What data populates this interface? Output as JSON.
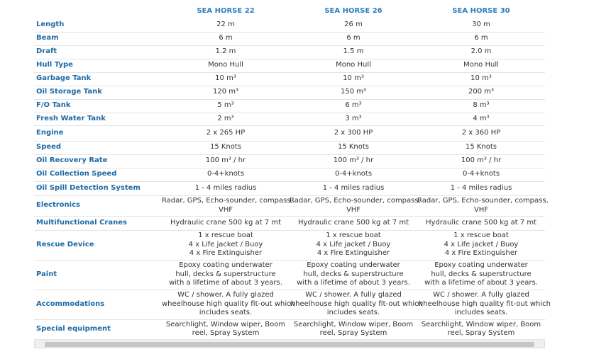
{
  "header": {
    "columns": [
      "SEA HORSE 22",
      "SEA HORSE 26",
      "SEA HORSE 30"
    ]
  },
  "table": {
    "rows": [
      {
        "label": "Length",
        "cells": [
          "22 m",
          "26 m",
          "30 m"
        ]
      },
      {
        "label": "Beam",
        "cells": [
          "6 m",
          "6 m",
          "6 m"
        ]
      },
      {
        "label": "Draft",
        "cells": [
          "1.2 m",
          "1.5 m",
          "2.0 m"
        ]
      },
      {
        "label": "Hull Type",
        "cells": [
          "Mono Hull",
          "Mono Hull",
          "Mono Hull"
        ]
      },
      {
        "label": "Garbage Tank",
        "cells": [
          "10 m³",
          "10 m³",
          "10 m³"
        ]
      },
      {
        "label": "Oil Storage Tank",
        "cells": [
          "120 m³",
          "150 m³",
          "200 m³"
        ]
      },
      {
        "label": "F/O Tank",
        "cells": [
          "5 m³",
          "6 m³",
          "8 m³"
        ]
      },
      {
        "label": "Fresh Water Tank",
        "cells": [
          "2 m³",
          "3 m³",
          "4 m³"
        ]
      },
      {
        "label": "Engine",
        "cells": [
          "2 x 265 HP",
          "2 x 300 HP",
          "2 x 360 HP"
        ]
      },
      {
        "label": "Speed",
        "cells": [
          "15 Knots",
          "15 Knots",
          "15 Knots"
        ]
      },
      {
        "label": "Oil Recovery Rate",
        "cells": [
          "100 m³ / hr",
          "100 m³ / hr",
          "100 m³ / hr"
        ]
      },
      {
        "label": "Oil Collection Speed",
        "cells": [
          "0-4+knots",
          "0-4+knots",
          "0-4+knots"
        ]
      },
      {
        "label": "Oil Spill Detection System",
        "cells": [
          "1 - 4 miles radius",
          "1 - 4 miles radius",
          "1 - 4 miles radius"
        ]
      },
      {
        "label": "Electronics",
        "cells": [
          [
            "Radar, GPS, Echo-sounder, compass,",
            "VHF"
          ],
          [
            "Radar, GPS, Echo-sounder, compass,",
            "VHF"
          ],
          [
            "Radar, GPS, Echo-sounder, compass,",
            "VHF"
          ]
        ]
      },
      {
        "label": "Multifunctional Cranes",
        "cells": [
          "Hydraulic crane 500 kg at 7 mt",
          "Hydraulic crane 500 kg at 7 mt",
          "Hydraulic crane 500 kg at 7 mt"
        ]
      },
      {
        "label": "Rescue Device",
        "cells": [
          [
            "1 x rescue boat",
            "4 x Life jacket / Buoy",
            "4 x Fire Extinguisher"
          ],
          [
            "1 x rescue boat",
            "4 x Life jacket / Buoy",
            "4 x Fire Extinguisher"
          ],
          [
            "1 x rescue boat",
            "4 x Life jacket / Buoy",
            "4 x Fire Extinguisher"
          ]
        ]
      },
      {
        "label": "Paint",
        "cells": [
          [
            "Epoxy coating underwater",
            "hull, decks & superstructure",
            "with a lifetime of about 3 years."
          ],
          [
            "Epoxy coating underwater",
            "hull, decks & superstructure",
            "with a lifetime of about 3 years."
          ],
          [
            "Epoxy coating underwater",
            "hull, decks & superstructure",
            "with a lifetime of about 3 years."
          ]
        ]
      },
      {
        "label": "Accommodations",
        "cells": [
          [
            "WC / shower. A fully glazed",
            "wheelhouse high quality fit-out which",
            "includes seats."
          ],
          [
            "WC / shower. A fully glazed",
            "wheelhouse high quality fit-out which",
            "includes seats."
          ],
          [
            "WC / shower. A fully glazed",
            "wheelhouse high quality fit-out which",
            "includes seats."
          ]
        ]
      },
      {
        "label": "Special equipment",
        "cells": [
          [
            "Searchlight, Window wiper, Boom",
            "reel, Spray System"
          ],
          [
            "Searchlight, Window wiper, Boom",
            "reel, Spray System"
          ],
          [
            "Searchlight, Window wiper, Boom",
            "reel, Spray System"
          ]
        ]
      }
    ]
  }
}
